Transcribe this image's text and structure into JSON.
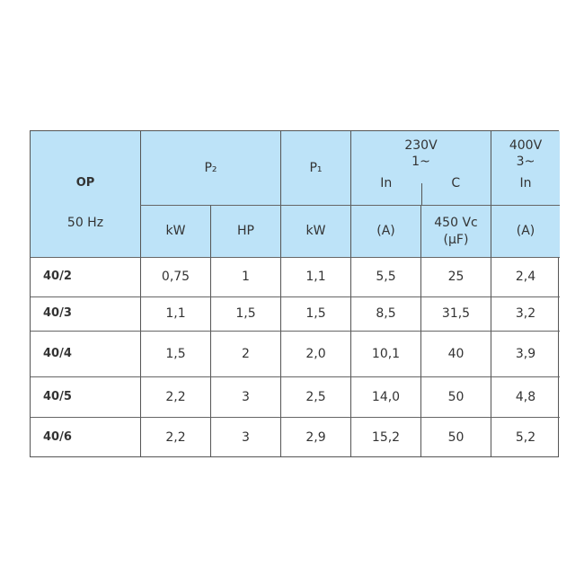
{
  "header": {
    "model": "OP",
    "frequency": "50 Hz",
    "p2": "P₂",
    "p1": "P₁",
    "v230": "230V",
    "v230_phase": "1~",
    "v400": "400V",
    "v400_phase": "3~",
    "in_230": "In",
    "c_230": "C",
    "in_400": "In",
    "units": [
      "kW",
      "HP",
      "kW",
      "(A)",
      "450 Vc",
      "(µF)",
      "(A)"
    ]
  },
  "colors": {
    "header_bg": "#bde3f8",
    "border": "#555555"
  },
  "rows": [
    {
      "model": "40/2",
      "p2_kw": "0,75",
      "p2_hp": "1",
      "p1_kw": "1,1",
      "in_230": "5,5",
      "c": "25",
      "in_400": "2,4"
    },
    {
      "model": "40/3",
      "p2_kw": "1,1",
      "p2_hp": "1,5",
      "p1_kw": "1,5",
      "in_230": "8,5",
      "c": "31,5",
      "in_400": "3,2"
    },
    {
      "model": "40/4",
      "p2_kw": "1,5",
      "p2_hp": "2",
      "p1_kw": "2,0",
      "in_230": "10,1",
      "c": "40",
      "in_400": "3,9"
    },
    {
      "model": "40/5",
      "p2_kw": "2,2",
      "p2_hp": "3",
      "p1_kw": "2,5",
      "in_230": "14,0",
      "c": "50",
      "in_400": "4,8"
    },
    {
      "model": "40/6",
      "p2_kw": "2,2",
      "p2_hp": "3",
      "p1_kw": "2,9",
      "in_230": "15,2",
      "c": "50",
      "in_400": "5,2"
    }
  ]
}
